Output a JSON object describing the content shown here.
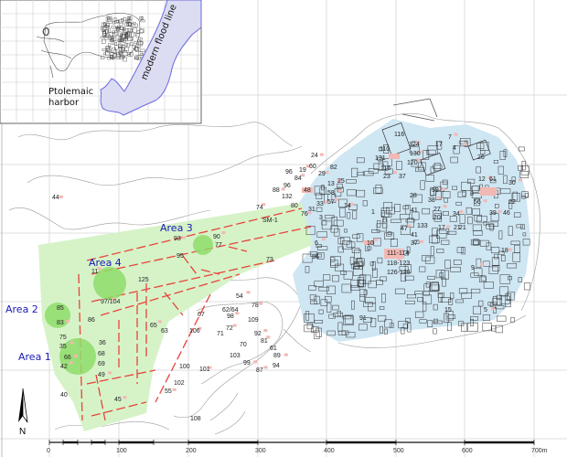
{
  "colors": {
    "city_fill": "#cfe6f3",
    "harbor_fill": "#d6f3c8",
    "area_circle": "#8fdc6a",
    "walls": "#e8443a",
    "site_marker": "#f2b8b4",
    "area_label": "#1a1ab4",
    "flood_line": "#6a6adf",
    "contour": "#9a9a9a"
  },
  "inset": {
    "flood_label": "modern flood line",
    "harbor_label_line1": "Ptolemaic",
    "harbor_label_line2": "harbor"
  },
  "areas": [
    "Area 1",
    "Area 2",
    "Area 3",
    "Area 4"
  ],
  "site_labels": [
    "24",
    "96",
    "19",
    "60",
    "29",
    "82",
    "84",
    "96",
    "13",
    "25",
    "88",
    "48",
    "58",
    "132",
    "57",
    "80",
    "33",
    "31",
    "76",
    "3",
    "14",
    "SM-1",
    "74",
    "116",
    "124",
    "110",
    "130",
    "131",
    "120",
    "116",
    "23",
    "37",
    "7",
    "17",
    "4",
    "26",
    "12",
    "61",
    "30",
    "8",
    "56",
    "22",
    "39",
    "46",
    "18",
    "21",
    "59",
    "28",
    "38",
    "41",
    "27",
    "20",
    "34",
    "1",
    "47",
    "133",
    "17",
    "21",
    "10",
    "41",
    "37",
    "111-114",
    "118-123",
    "126-128",
    "9",
    "15",
    "5",
    "91",
    "6",
    "16",
    "93",
    "95",
    "90",
    "77",
    "11",
    "125",
    "97/104",
    "85",
    "83",
    "86",
    "65",
    "63",
    "106",
    "75",
    "35",
    "36",
    "66",
    "68",
    "42",
    "69",
    "49",
    "100",
    "101",
    "102",
    "55",
    "40",
    "45",
    "73",
    "54",
    "62/64",
    "78",
    "67",
    "98",
    "109",
    "72",
    "71",
    "92",
    "70",
    "81",
    "61",
    "89",
    "103",
    "99",
    "94",
    "87",
    "108",
    "44"
  ],
  "north_arrow": {
    "label": "N",
    "icon": "north-arrow-icon"
  },
  "scale_bar": {
    "ticks": [
      "0",
      "100",
      "200",
      "300",
      "400",
      "500",
      "600",
      "700m"
    ],
    "unit": "m"
  }
}
